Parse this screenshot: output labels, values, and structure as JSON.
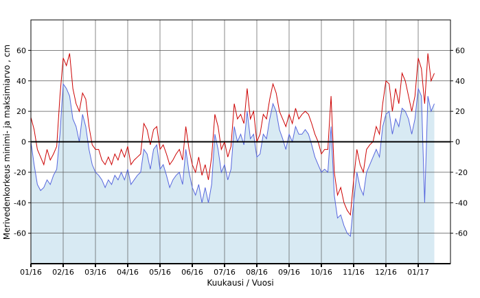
{
  "chart_data": {
    "type": "line",
    "title": "",
    "xlabel": "Kuukausi / Vuosi",
    "ylabel": "Merivedenkorkeus minimi- ja maksimiarvo , cm",
    "ylim": [
      -80,
      80
    ],
    "yticks": [
      -60,
      -40,
      -20,
      0,
      20,
      40,
      60
    ],
    "xlim": [
      0,
      13
    ],
    "xticks": [
      {
        "x": 0,
        "label": "01/16"
      },
      {
        "x": 1,
        "label": "02/16"
      },
      {
        "x": 2,
        "label": "03/16"
      },
      {
        "x": 3,
        "label": "04/16"
      },
      {
        "x": 4,
        "label": "05/16"
      },
      {
        "x": 5,
        "label": "06/16"
      },
      {
        "x": 6,
        "label": "07/16"
      },
      {
        "x": 7,
        "label": "08/16"
      },
      {
        "x": 8,
        "label": "09/16"
      },
      {
        "x": 9,
        "label": "10/16"
      },
      {
        "x": 10,
        "label": "11/16"
      },
      {
        "x": 11,
        "label": "12/16"
      },
      {
        "x": 12,
        "label": "01/17"
      }
    ],
    "grid": true,
    "right_axis_mirror": true,
    "zero_line": true,
    "colors": {
      "max": "#cc0000",
      "min": "#5566dd",
      "fill": "#d8eaf3",
      "grid": "#555555"
    },
    "series": [
      {
        "key": "max",
        "x": [
          0,
          0.1,
          0.2,
          0.3,
          0.4,
          0.5,
          0.6,
          0.7,
          0.8,
          0.9,
          1,
          1.1,
          1.2,
          1.3,
          1.4,
          1.5,
          1.6,
          1.7,
          1.8,
          1.9,
          2,
          2.1,
          2.2,
          2.3,
          2.4,
          2.5,
          2.6,
          2.7,
          2.8,
          2.9,
          3,
          3.1,
          3.2,
          3.3,
          3.4,
          3.5,
          3.6,
          3.7,
          3.8,
          3.9,
          4,
          4.1,
          4.2,
          4.3,
          4.4,
          4.5,
          4.6,
          4.7,
          4.8,
          4.9,
          5,
          5.1,
          5.2,
          5.3,
          5.4,
          5.5,
          5.6,
          5.7,
          5.8,
          5.9,
          6,
          6.1,
          6.2,
          6.3,
          6.4,
          6.5,
          6.6,
          6.7,
          6.8,
          6.9,
          7,
          7.1,
          7.2,
          7.3,
          7.4,
          7.5,
          7.6,
          7.7,
          7.8,
          7.9,
          8,
          8.1,
          8.2,
          8.3,
          8.4,
          8.5,
          8.6,
          8.7,
          8.8,
          8.9,
          9,
          9.1,
          9.2,
          9.3,
          9.4,
          9.5,
          9.6,
          9.7,
          9.8,
          9.9,
          10,
          10.1,
          10.2,
          10.3,
          10.4,
          10.5,
          10.6,
          10.7,
          10.8,
          10.9,
          11,
          11.1,
          11.2,
          11.3,
          11.4,
          11.5,
          11.6,
          11.7,
          11.8,
          11.9,
          12,
          12.1,
          12.2,
          12.3,
          12.4,
          12.5
        ],
        "y": [
          16,
          8,
          -5,
          -10,
          -15,
          -5,
          -12,
          -8,
          -3,
          30,
          55,
          50,
          58,
          35,
          25,
          20,
          32,
          28,
          10,
          -2,
          -5,
          -5,
          -12,
          -15,
          -10,
          -15,
          -8,
          -12,
          -5,
          -10,
          -3,
          -15,
          -12,
          -10,
          -8,
          12,
          8,
          -2,
          8,
          10,
          -5,
          -2,
          -8,
          -15,
          -12,
          -8,
          -5,
          -12,
          10,
          -5,
          -15,
          -20,
          -10,
          -22,
          -15,
          -25,
          -10,
          18,
          10,
          -5,
          0,
          -10,
          -3,
          25,
          15,
          18,
          12,
          35,
          15,
          20,
          0,
          5,
          18,
          15,
          28,
          38,
          32,
          20,
          15,
          10,
          18,
          12,
          22,
          15,
          18,
          20,
          18,
          12,
          5,
          0,
          -8,
          -5,
          -5,
          30,
          -20,
          -35,
          -30,
          -40,
          -45,
          -48,
          -25,
          -5,
          -15,
          -20,
          -5,
          -2,
          0,
          10,
          5,
          25,
          40,
          38,
          20,
          35,
          25,
          45,
          40,
          30,
          20,
          30,
          55,
          48,
          25,
          58,
          40,
          45
        ]
      },
      {
        "key": "min",
        "x": [
          0,
          0.1,
          0.2,
          0.3,
          0.4,
          0.5,
          0.6,
          0.7,
          0.8,
          0.9,
          1,
          1.1,
          1.2,
          1.3,
          1.4,
          1.5,
          1.6,
          1.7,
          1.8,
          1.9,
          2,
          2.1,
          2.2,
          2.3,
          2.4,
          2.5,
          2.6,
          2.7,
          2.8,
          2.9,
          3,
          3.1,
          3.2,
          3.3,
          3.4,
          3.5,
          3.6,
          3.7,
          3.8,
          3.9,
          4,
          4.1,
          4.2,
          4.3,
          4.4,
          4.5,
          4.6,
          4.7,
          4.8,
          4.9,
          5,
          5.1,
          5.2,
          5.3,
          5.4,
          5.5,
          5.6,
          5.7,
          5.8,
          5.9,
          6,
          6.1,
          6.2,
          6.3,
          6.4,
          6.5,
          6.6,
          6.7,
          6.8,
          6.9,
          7,
          7.1,
          7.2,
          7.3,
          7.4,
          7.5,
          7.6,
          7.7,
          7.8,
          7.9,
          8,
          8.1,
          8.2,
          8.3,
          8.4,
          8.5,
          8.6,
          8.7,
          8.8,
          8.9,
          9,
          9.1,
          9.2,
          9.3,
          9.4,
          9.5,
          9.6,
          9.7,
          9.8,
          9.9,
          10,
          10.1,
          10.2,
          10.3,
          10.4,
          10.5,
          10.6,
          10.7,
          10.8,
          10.9,
          11,
          11.1,
          11.2,
          11.3,
          11.4,
          11.5,
          11.6,
          11.7,
          11.8,
          11.9,
          12,
          12.1,
          12.2,
          12.3,
          12.4,
          12.5
        ],
        "y": [
          0,
          -15,
          -28,
          -32,
          -30,
          -25,
          -28,
          -22,
          -18,
          5,
          38,
          35,
          30,
          15,
          10,
          0,
          18,
          10,
          -5,
          -15,
          -20,
          -22,
          -25,
          -30,
          -25,
          -28,
          -22,
          -25,
          -20,
          -25,
          -18,
          -28,
          -25,
          -22,
          -20,
          -5,
          -8,
          -18,
          -5,
          -2,
          -18,
          -15,
          -22,
          -30,
          -25,
          -22,
          -20,
          -28,
          -5,
          -20,
          -30,
          -35,
          -28,
          -40,
          -30,
          -40,
          -28,
          5,
          -5,
          -20,
          -15,
          -25,
          -18,
          10,
          0,
          5,
          -2,
          20,
          2,
          5,
          -10,
          -8,
          5,
          2,
          15,
          25,
          20,
          8,
          2,
          -5,
          5,
          0,
          10,
          5,
          5,
          8,
          5,
          -2,
          -10,
          -15,
          -20,
          -18,
          -20,
          10,
          -35,
          -50,
          -48,
          -55,
          -60,
          -62,
          -40,
          -20,
          -30,
          -35,
          -20,
          -15,
          -10,
          -5,
          -10,
          10,
          18,
          20,
          5,
          15,
          10,
          22,
          20,
          15,
          5,
          15,
          35,
          30,
          -40,
          30,
          20,
          25
        ]
      }
    ]
  }
}
